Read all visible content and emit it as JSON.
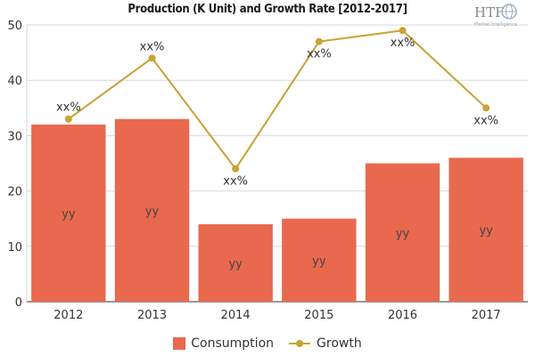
{
  "chart_data": {
    "type": "bar",
    "title": "Production (K Unit) and Growth Rate [2012-2017]",
    "categories": [
      "2012",
      "2013",
      "2014",
      "2015",
      "2016",
      "2017"
    ],
    "ylim": [
      0,
      50
    ],
    "yticks": [
      0,
      10,
      20,
      30,
      40,
      50
    ],
    "grid": true,
    "legend_position": "bottom",
    "series": [
      {
        "name": "Consumption",
        "type": "bar",
        "color": "#e8694e",
        "values": [
          32,
          33,
          14,
          15,
          25,
          26
        ],
        "labels": [
          "yy",
          "yy",
          "yy",
          "yy",
          "yy",
          "yy"
        ]
      },
      {
        "name": "Growth",
        "type": "line",
        "color": "#c9a235",
        "values": [
          33,
          44,
          24,
          47,
          49,
          35
        ],
        "labels": [
          "xx%",
          "xx%",
          "xx%",
          "xx%",
          "xx%",
          "xx%"
        ]
      }
    ]
  },
  "watermark": {
    "letters": "HTF",
    "caption": "Market Intelligence"
  }
}
